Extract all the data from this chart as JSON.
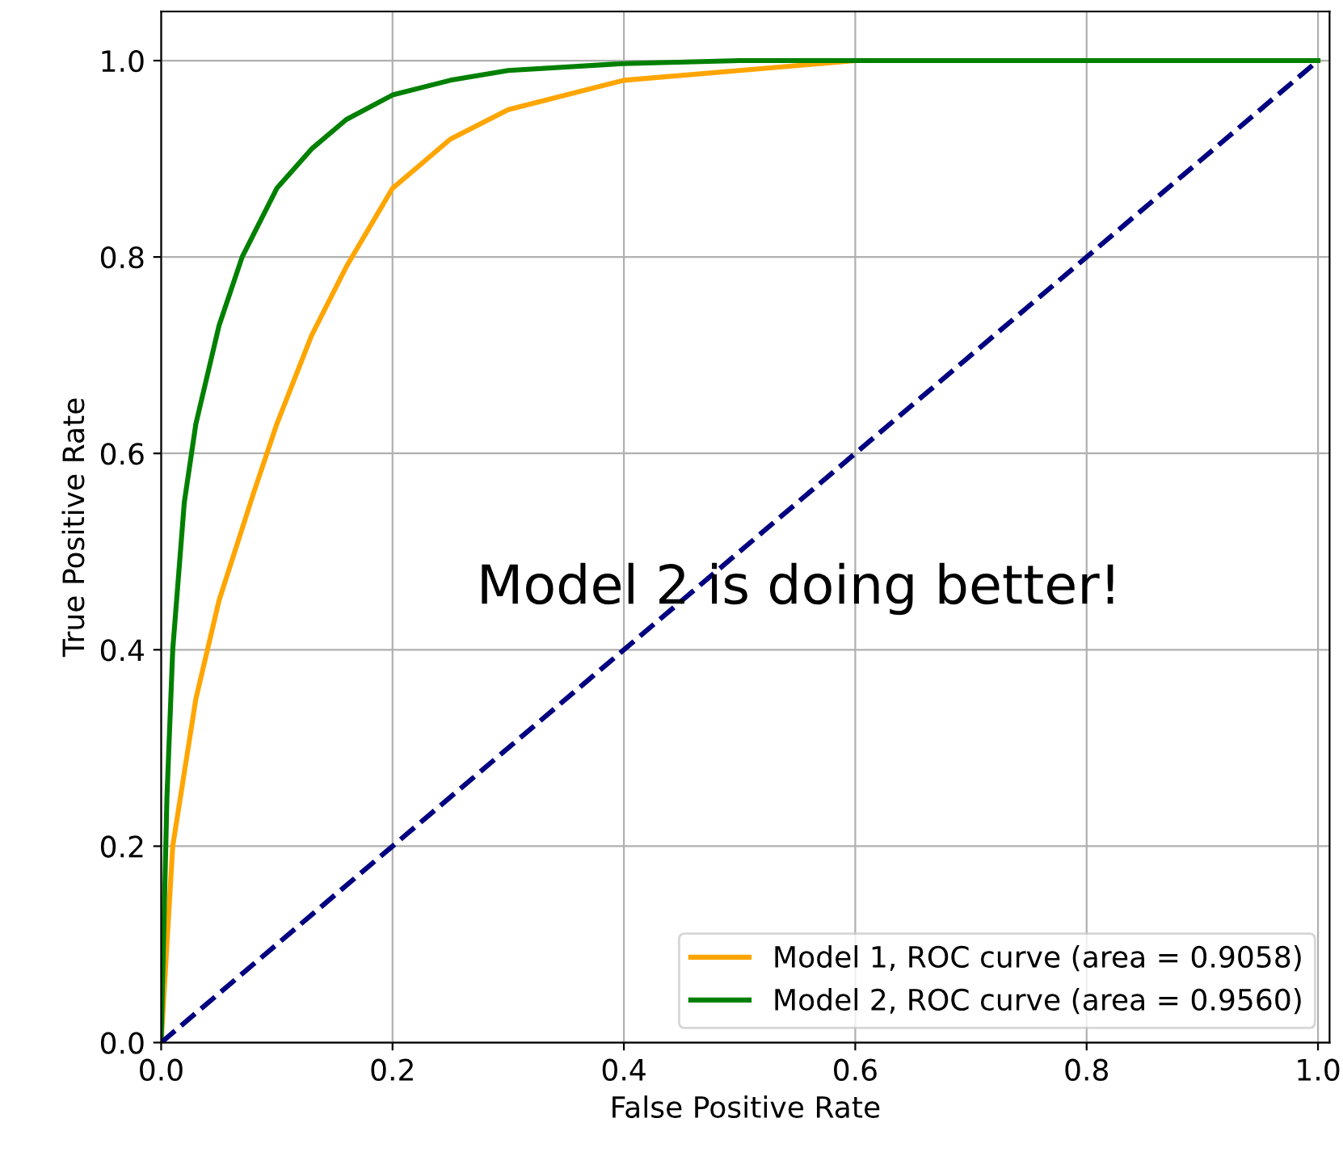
{
  "chart_data": {
    "type": "line",
    "xlabel": "False Positive Rate",
    "ylabel": "True Positive Rate",
    "xlim": [
      0,
      1.01
    ],
    "ylim": [
      0,
      1.05
    ],
    "xticks": [
      {
        "value": 0,
        "label": "0.0"
      },
      0.2,
      0.4,
      0.6,
      0.8,
      {
        "value": 1,
        "label": "1.0"
      }
    ],
    "yticks": [
      {
        "value": 0,
        "label": "0.0"
      },
      0.2,
      0.4,
      0.6,
      0.8,
      {
        "value": 1,
        "label": "1.0"
      }
    ],
    "grid": true,
    "legend": "bottom right",
    "line_style": "solid",
    "marker": "none",
    "series": [
      {
        "name": "Model 1, ROC curve (area = 0.9058)",
        "color": "#ffa500",
        "x": [
          0,
          0.01,
          0.03,
          0.05,
          0.08,
          0.1,
          0.13,
          0.16,
          0.2,
          0.25,
          0.3,
          0.4,
          0.5,
          0.6,
          1.0
        ],
        "values": [
          0,
          0.2,
          0.35,
          0.45,
          0.56,
          0.63,
          0.72,
          0.79,
          0.87,
          0.92,
          0.95,
          0.98,
          0.99,
          1.0,
          1.0
        ]
      },
      {
        "name": "Model 2, ROC curve (area = 0.9560)",
        "color": "#008000",
        "x": [
          0,
          0.005,
          0.01,
          0.02,
          0.03,
          0.05,
          0.07,
          0.1,
          0.13,
          0.16,
          0.2,
          0.25,
          0.3,
          0.4,
          0.5,
          1.0
        ],
        "values": [
          0,
          0.25,
          0.4,
          0.55,
          0.63,
          0.73,
          0.8,
          0.87,
          0.91,
          0.94,
          0.965,
          0.98,
          0.99,
          0.997,
          1.0,
          1.0
        ]
      },
      {
        "color": "#000080",
        "line_style": "dashed",
        "x": [
          0,
          1.0
        ],
        "values": [
          0,
          1.0
        ]
      }
    ],
    "annotations": [
      "Model 2 is doing better!"
    ]
  }
}
